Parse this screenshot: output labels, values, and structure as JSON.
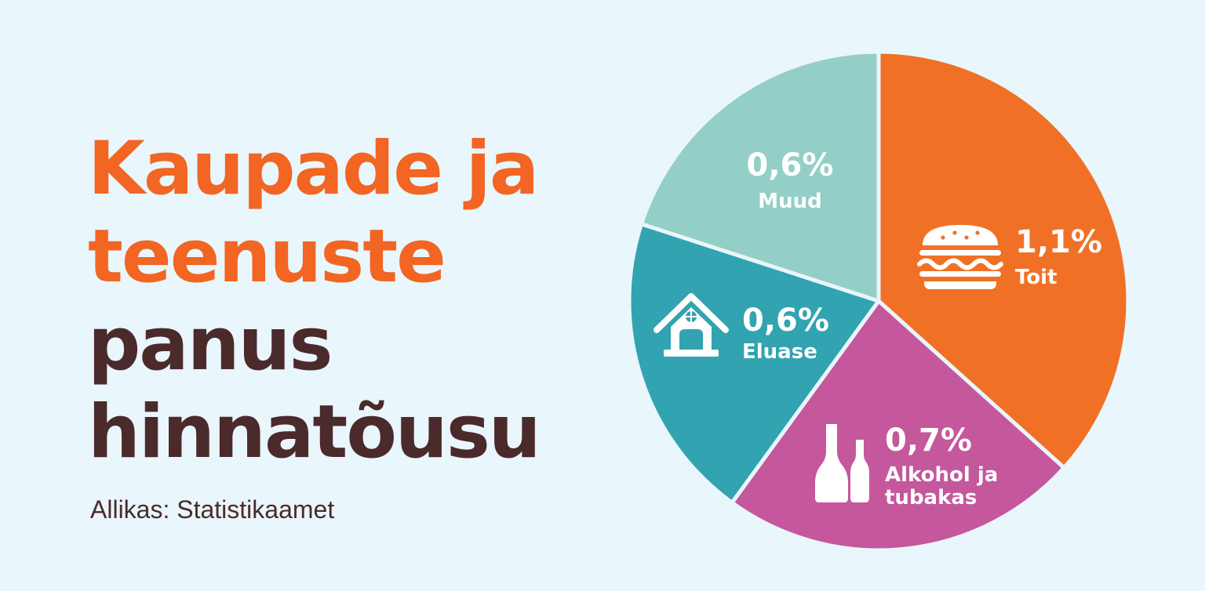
{
  "title": {
    "lines": [
      {
        "text": "Kaupade ja",
        "color": "#f26522"
      },
      {
        "text": "teenuste",
        "color": "#f26522"
      },
      {
        "text": "panus",
        "color": "#4b2a2c"
      },
      {
        "text": "hinnatõusu",
        "color": "#4b2a2c"
      }
    ]
  },
  "source": "Allikas: Statistikaamet",
  "chart_data": {
    "type": "pie",
    "slices": [
      {
        "pct_label": "1,1%",
        "name": "Toit",
        "value": 1.1,
        "color": "#f07126",
        "icon": "burger-icon"
      },
      {
        "pct_label": "0,7%",
        "name_lines": [
          "Alkohol ja",
          "tubakas"
        ],
        "value": 0.7,
        "color": "#c5579c",
        "icon": "bottles-icon"
      },
      {
        "pct_label": "0,6%",
        "name": "Eluase",
        "value": 0.6,
        "color": "#32a3b0",
        "icon": "house-icon"
      },
      {
        "pct_label": "0,6%",
        "name": "Muud",
        "value": 0.6,
        "color": "#93cfc6"
      }
    ]
  }
}
